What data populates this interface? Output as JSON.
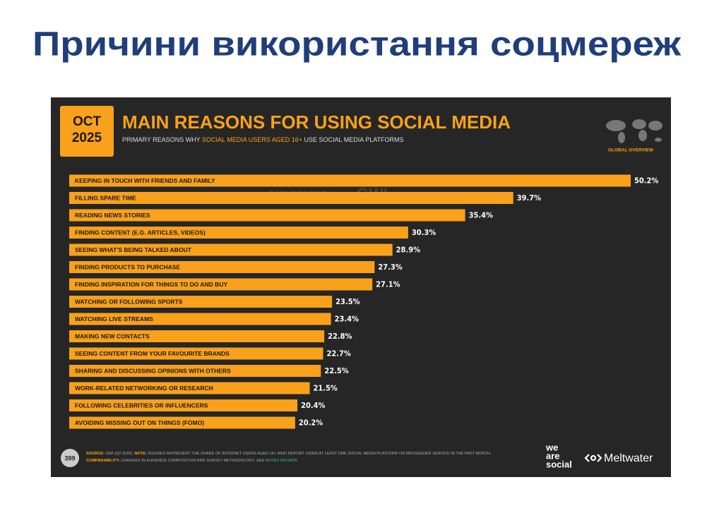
{
  "slide_title": "Причини використання соцмереж",
  "chart_data": {
    "type": "bar",
    "orientation": "horizontal",
    "date_badge": [
      "OCT",
      "2025"
    ],
    "title": "MAIN REASONS FOR USING SOCIAL MEDIA",
    "subtitle": [
      "PRIMARY REASONS WHY ",
      "SOCIAL MEDIA USERS AGED 16+",
      " USE SOCIAL MEDIA PLATFORMS"
    ],
    "region": "GLOBAL OVERVIEW",
    "watermark": [
      "DATAREPORTAL",
      "GWI."
    ],
    "color": "#f9a11b",
    "categories": [
      "KEEPING IN TOUCH WITH FRIENDS AND FAMILY",
      "FILLING SPARE TIME",
      "READING NEWS STORIES",
      "FINDING CONTENT (E.G. ARTICLES, VIDEOS)",
      "SEEING WHAT'S BEING TALKED ABOUT",
      "FINDING PRODUCTS TO PURCHASE",
      "FINDING INSPIRATION FOR THINGS TO DO AND BUY",
      "WATCHING OR FOLLOWING SPORTS",
      "WATCHING LIVE STREAMS",
      "MAKING NEW CONTACTS",
      "SEEING CONTENT FROM YOUR FAVOURITE BRANDS",
      "SHARING AND DISCUSSING OPINIONS WITH OTHERS",
      "WORK-RELATED NETWORKING OR RESEARCH",
      "FOLLOWING CELEBRITIES OR INFLUENCERS",
      "AVOIDING MISSING OUT ON THINGS (FOMO)"
    ],
    "values": [
      50.2,
      39.7,
      35.4,
      30.3,
      28.9,
      27.3,
      27.1,
      23.5,
      23.4,
      22.8,
      22.7,
      22.5,
      21.5,
      20.4,
      20.2
    ],
    "value_labels": [
      "50.2%",
      "39.7%",
      "35.4%",
      "30.3%",
      "28.9%",
      "27.3%",
      "27.1%",
      "23.5%",
      "23.4%",
      "22.8%",
      "22.7%",
      "22.5%",
      "21.5%",
      "20.4%",
      "20.2%"
    ],
    "footer": {
      "page_number": "399",
      "source_label": "SOURCE:",
      "source": " GWI (Q2 2025). ",
      "note_label": "NOTE:",
      "note": " FIGURES REPRESENT THE SHARE OF INTERNET USERS AGED 16+ WHO REPORT USING AT LEAST ONE SOCIAL MEDIA PLATFORM OR MESSENGER SERVICE IN THE PAST MONTH.",
      "comparability_label": "COMPARABILITY:",
      "comparability": " CHANGES IN AUDIENCE COMPOSITION AND SURVEY METHODOLOGY. SEE ",
      "notes_link": "NOTES ON DATA."
    },
    "brands": {
      "we_are_social": [
        "we",
        "are",
        "social"
      ],
      "meltwater": "Meltwater"
    }
  }
}
